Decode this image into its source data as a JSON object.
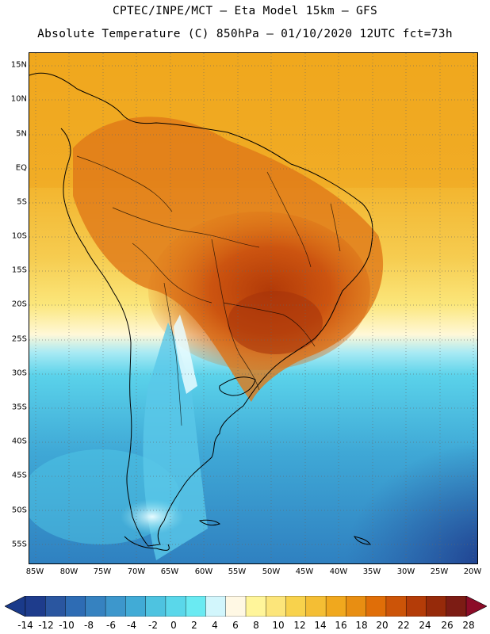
{
  "title_line1": "CPTEC/INPE/MCT –  Eta Model 15km – GFS",
  "title_line2": "Absolute Temperature (C) 850hPa – 01/10/2020 12UTC fct=73h",
  "lat_labels": [
    "15N",
    "10N",
    "5N",
    "EQ",
    "5S",
    "10S",
    "15S",
    "20S",
    "25S",
    "30S",
    "35S",
    "40S",
    "45S",
    "50S",
    "55S"
  ],
  "lon_labels": [
    "85W",
    "80W",
    "75W",
    "70W",
    "65W",
    "60W",
    "55W",
    "50W",
    "45W",
    "40W",
    "35W",
    "30W",
    "25W",
    "20W"
  ],
  "colorbar": {
    "labels": [
      "-14",
      "-12",
      "-10",
      "-8",
      "-6",
      "-4",
      "-2",
      "0",
      "2",
      "4",
      "6",
      "8",
      "10",
      "12",
      "14",
      "16",
      "18",
      "20",
      "22",
      "24",
      "26",
      "28"
    ],
    "colors": [
      "#1e3c8c",
      "#2a56a0",
      "#2e6cb4",
      "#3682c0",
      "#3d97cc",
      "#41abd6",
      "#4ec3e0",
      "#5ad7ea",
      "#6aeaf2",
      "#d2f6fc",
      "#fff8e4",
      "#fff59a",
      "#fce57a",
      "#f8d24c",
      "#f4be34",
      "#f0a81e",
      "#e88e12",
      "#e06e08",
      "#cc5408",
      "#b43c08",
      "#962a0a",
      "#7c1c14"
    ],
    "low_color": "#1a3a8a",
    "high_color": "#8c0c28"
  },
  "colors": {
    "ocean_warm": "#f2ae1e",
    "ocean_cold": "#3aa6d8",
    "hot_core": "#b8420a"
  }
}
